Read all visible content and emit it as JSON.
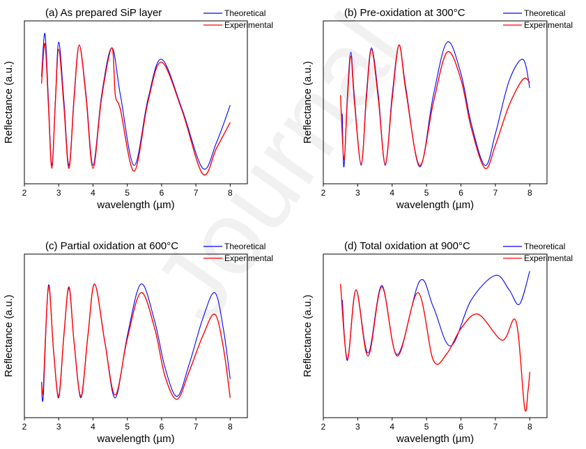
{
  "watermark": {
    "text": "Journal",
    "color": "#000000"
  },
  "colors": {
    "theoretical": "#0000ff",
    "experimental": "#ff0000",
    "axis": "#000000"
  },
  "chart_data": [
    {
      "type": "line",
      "title": "(a) As prepared SiP layer",
      "xlabel": "wavelength (µm)",
      "ylabel": "Reflectance (a.u.)",
      "xlim": [
        2,
        8.5
      ],
      "ylim": [
        0,
        1
      ],
      "xticks": [
        "2",
        "3",
        "4",
        "5",
        "6",
        "7",
        "8"
      ],
      "yticks": [],
      "legend": "top-right",
      "series": [
        {
          "name": "Theoretical",
          "color": "#0000ff",
          "x": [
            2.5,
            2.6,
            2.7,
            2.8,
            2.9,
            3.0,
            3.15,
            3.3,
            3.45,
            3.6,
            3.8,
            4.0,
            4.25,
            4.55,
            4.8,
            5.2,
            5.6,
            6.0,
            6.6,
            7.2,
            7.6,
            8.0
          ],
          "y": [
            0.68,
            0.98,
            0.52,
            0.06,
            0.5,
            0.92,
            0.52,
            0.06,
            0.55,
            0.9,
            0.55,
            0.06,
            0.55,
            0.88,
            0.55,
            0.06,
            0.52,
            0.8,
            0.45,
            0.04,
            0.22,
            0.48
          ]
        },
        {
          "name": "Experimental",
          "color": "#ff0000",
          "x": [
            2.5,
            2.6,
            2.7,
            2.8,
            2.9,
            3.0,
            3.15,
            3.3,
            3.45,
            3.6,
            3.8,
            4.0,
            4.25,
            4.55,
            4.65,
            4.8,
            5.2,
            5.6,
            6.0,
            6.6,
            7.2,
            7.6,
            8.0
          ],
          "y": [
            0.63,
            0.91,
            0.48,
            0.04,
            0.48,
            0.87,
            0.48,
            0.04,
            0.53,
            0.9,
            0.53,
            0.04,
            0.53,
            0.88,
            0.55,
            0.45,
            0.02,
            0.5,
            0.78,
            0.44,
            0.0,
            0.18,
            0.36
          ]
        }
      ]
    },
    {
      "type": "line",
      "title": "(b) Pre-oxidation at 300°C",
      "xlabel": "wavelength (µm)",
      "ylabel": "Reflectance (a.u.)",
      "xlim": [
        2,
        8.5
      ],
      "ylim": [
        0,
        1
      ],
      "xticks": [
        "2",
        "3",
        "4",
        "5",
        "6",
        "7",
        "8"
      ],
      "yticks": [],
      "legend": "top-right",
      "series": [
        {
          "name": "Theoretical",
          "color": "#0000ff",
          "x": [
            2.55,
            2.6,
            2.7,
            2.8,
            2.9,
            3.1,
            3.25,
            3.4,
            3.6,
            3.8,
            4.0,
            4.2,
            4.4,
            4.8,
            5.2,
            5.6,
            6.0,
            6.3,
            6.7,
            7.0,
            7.4,
            7.8,
            8.0
          ],
          "y": [
            0.42,
            0.05,
            0.55,
            0.85,
            0.55,
            0.06,
            0.55,
            0.88,
            0.55,
            0.06,
            0.55,
            0.9,
            0.6,
            0.05,
            0.55,
            0.92,
            0.7,
            0.35,
            0.06,
            0.28,
            0.65,
            0.8,
            0.6
          ]
        },
        {
          "name": "Experimental",
          "color": "#ff0000",
          "x": [
            2.5,
            2.6,
            2.7,
            2.8,
            2.9,
            3.1,
            3.25,
            3.4,
            3.6,
            3.8,
            4.0,
            4.2,
            4.4,
            4.8,
            5.2,
            5.6,
            6.0,
            6.3,
            6.7,
            7.0,
            7.4,
            7.8,
            8.0
          ],
          "y": [
            0.55,
            0.1,
            0.52,
            0.82,
            0.52,
            0.07,
            0.52,
            0.87,
            0.52,
            0.07,
            0.52,
            0.9,
            0.58,
            0.06,
            0.5,
            0.85,
            0.66,
            0.32,
            0.04,
            0.2,
            0.48,
            0.66,
            0.64
          ]
        }
      ]
    },
    {
      "type": "line",
      "title": "(c) Partial oxidation at 600°C",
      "xlabel": "wavelength (µm)",
      "ylabel": "Reflectance (a.u.)",
      "xlim": [
        2,
        8.5
      ],
      "ylim": [
        0,
        1
      ],
      "xticks": [
        "2",
        "3",
        "4",
        "5",
        "6",
        "7",
        "8"
      ],
      "yticks": [],
      "legend": "top-right",
      "series": [
        {
          "name": "Theoretical",
          "color": "#0000ff",
          "x": [
            2.5,
            2.55,
            2.7,
            2.85,
            3.0,
            3.15,
            3.3,
            3.45,
            3.65,
            3.85,
            4.05,
            4.35,
            4.65,
            5.0,
            5.4,
            5.8,
            6.1,
            6.45,
            6.8,
            7.2,
            7.55,
            7.8,
            8.0
          ],
          "y": [
            0.18,
            0.08,
            0.85,
            0.4,
            0.07,
            0.5,
            0.83,
            0.45,
            0.07,
            0.5,
            0.86,
            0.45,
            0.07,
            0.5,
            0.86,
            0.6,
            0.28,
            0.08,
            0.3,
            0.62,
            0.8,
            0.55,
            0.2
          ]
        },
        {
          "name": "Experimental",
          "color": "#ff0000",
          "x": [
            2.5,
            2.55,
            2.7,
            2.85,
            3.0,
            3.15,
            3.3,
            3.45,
            3.65,
            3.85,
            4.05,
            4.35,
            4.65,
            5.0,
            5.4,
            5.8,
            6.1,
            6.45,
            6.8,
            7.2,
            7.55,
            7.8,
            8.0
          ],
          "y": [
            0.16,
            0.14,
            0.84,
            0.4,
            0.08,
            0.5,
            0.84,
            0.45,
            0.08,
            0.5,
            0.86,
            0.45,
            0.09,
            0.48,
            0.8,
            0.55,
            0.22,
            0.06,
            0.25,
            0.5,
            0.65,
            0.42,
            0.07
          ]
        }
      ]
    },
    {
      "type": "line",
      "title": "(d) Total oxidation at 900°C",
      "xlabel": "wavelength (µm)",
      "ylabel": "Reflectance (a.u.)",
      "xlim": [
        2,
        8.5
      ],
      "ylim": [
        0,
        1
      ],
      "xticks": [
        "2",
        "3",
        "4",
        "5",
        "6",
        "7",
        "8"
      ],
      "yticks": [],
      "legend": "top-right",
      "series": [
        {
          "name": "Theoretical",
          "color": "#0000ff",
          "x": [
            2.55,
            2.7,
            2.95,
            3.3,
            3.7,
            4.15,
            4.8,
            5.2,
            5.7,
            6.3,
            7.0,
            7.4,
            7.7,
            8.0
          ],
          "y": [
            0.75,
            0.33,
            0.82,
            0.38,
            0.85,
            0.37,
            0.88,
            0.7,
            0.43,
            0.75,
            0.92,
            0.82,
            0.72,
            0.95
          ]
        },
        {
          "name": "Experimental",
          "color": "#ff0000",
          "x": [
            2.5,
            2.7,
            2.95,
            3.3,
            3.7,
            4.15,
            4.75,
            5.2,
            5.6,
            6.0,
            6.5,
            7.2,
            7.6,
            7.85,
            7.95,
            8.0
          ],
          "y": [
            0.86,
            0.34,
            0.82,
            0.36,
            0.84,
            0.36,
            0.8,
            0.33,
            0.38,
            0.55,
            0.65,
            0.47,
            0.6,
            0.0,
            0.12,
            0.25
          ]
        }
      ]
    }
  ]
}
